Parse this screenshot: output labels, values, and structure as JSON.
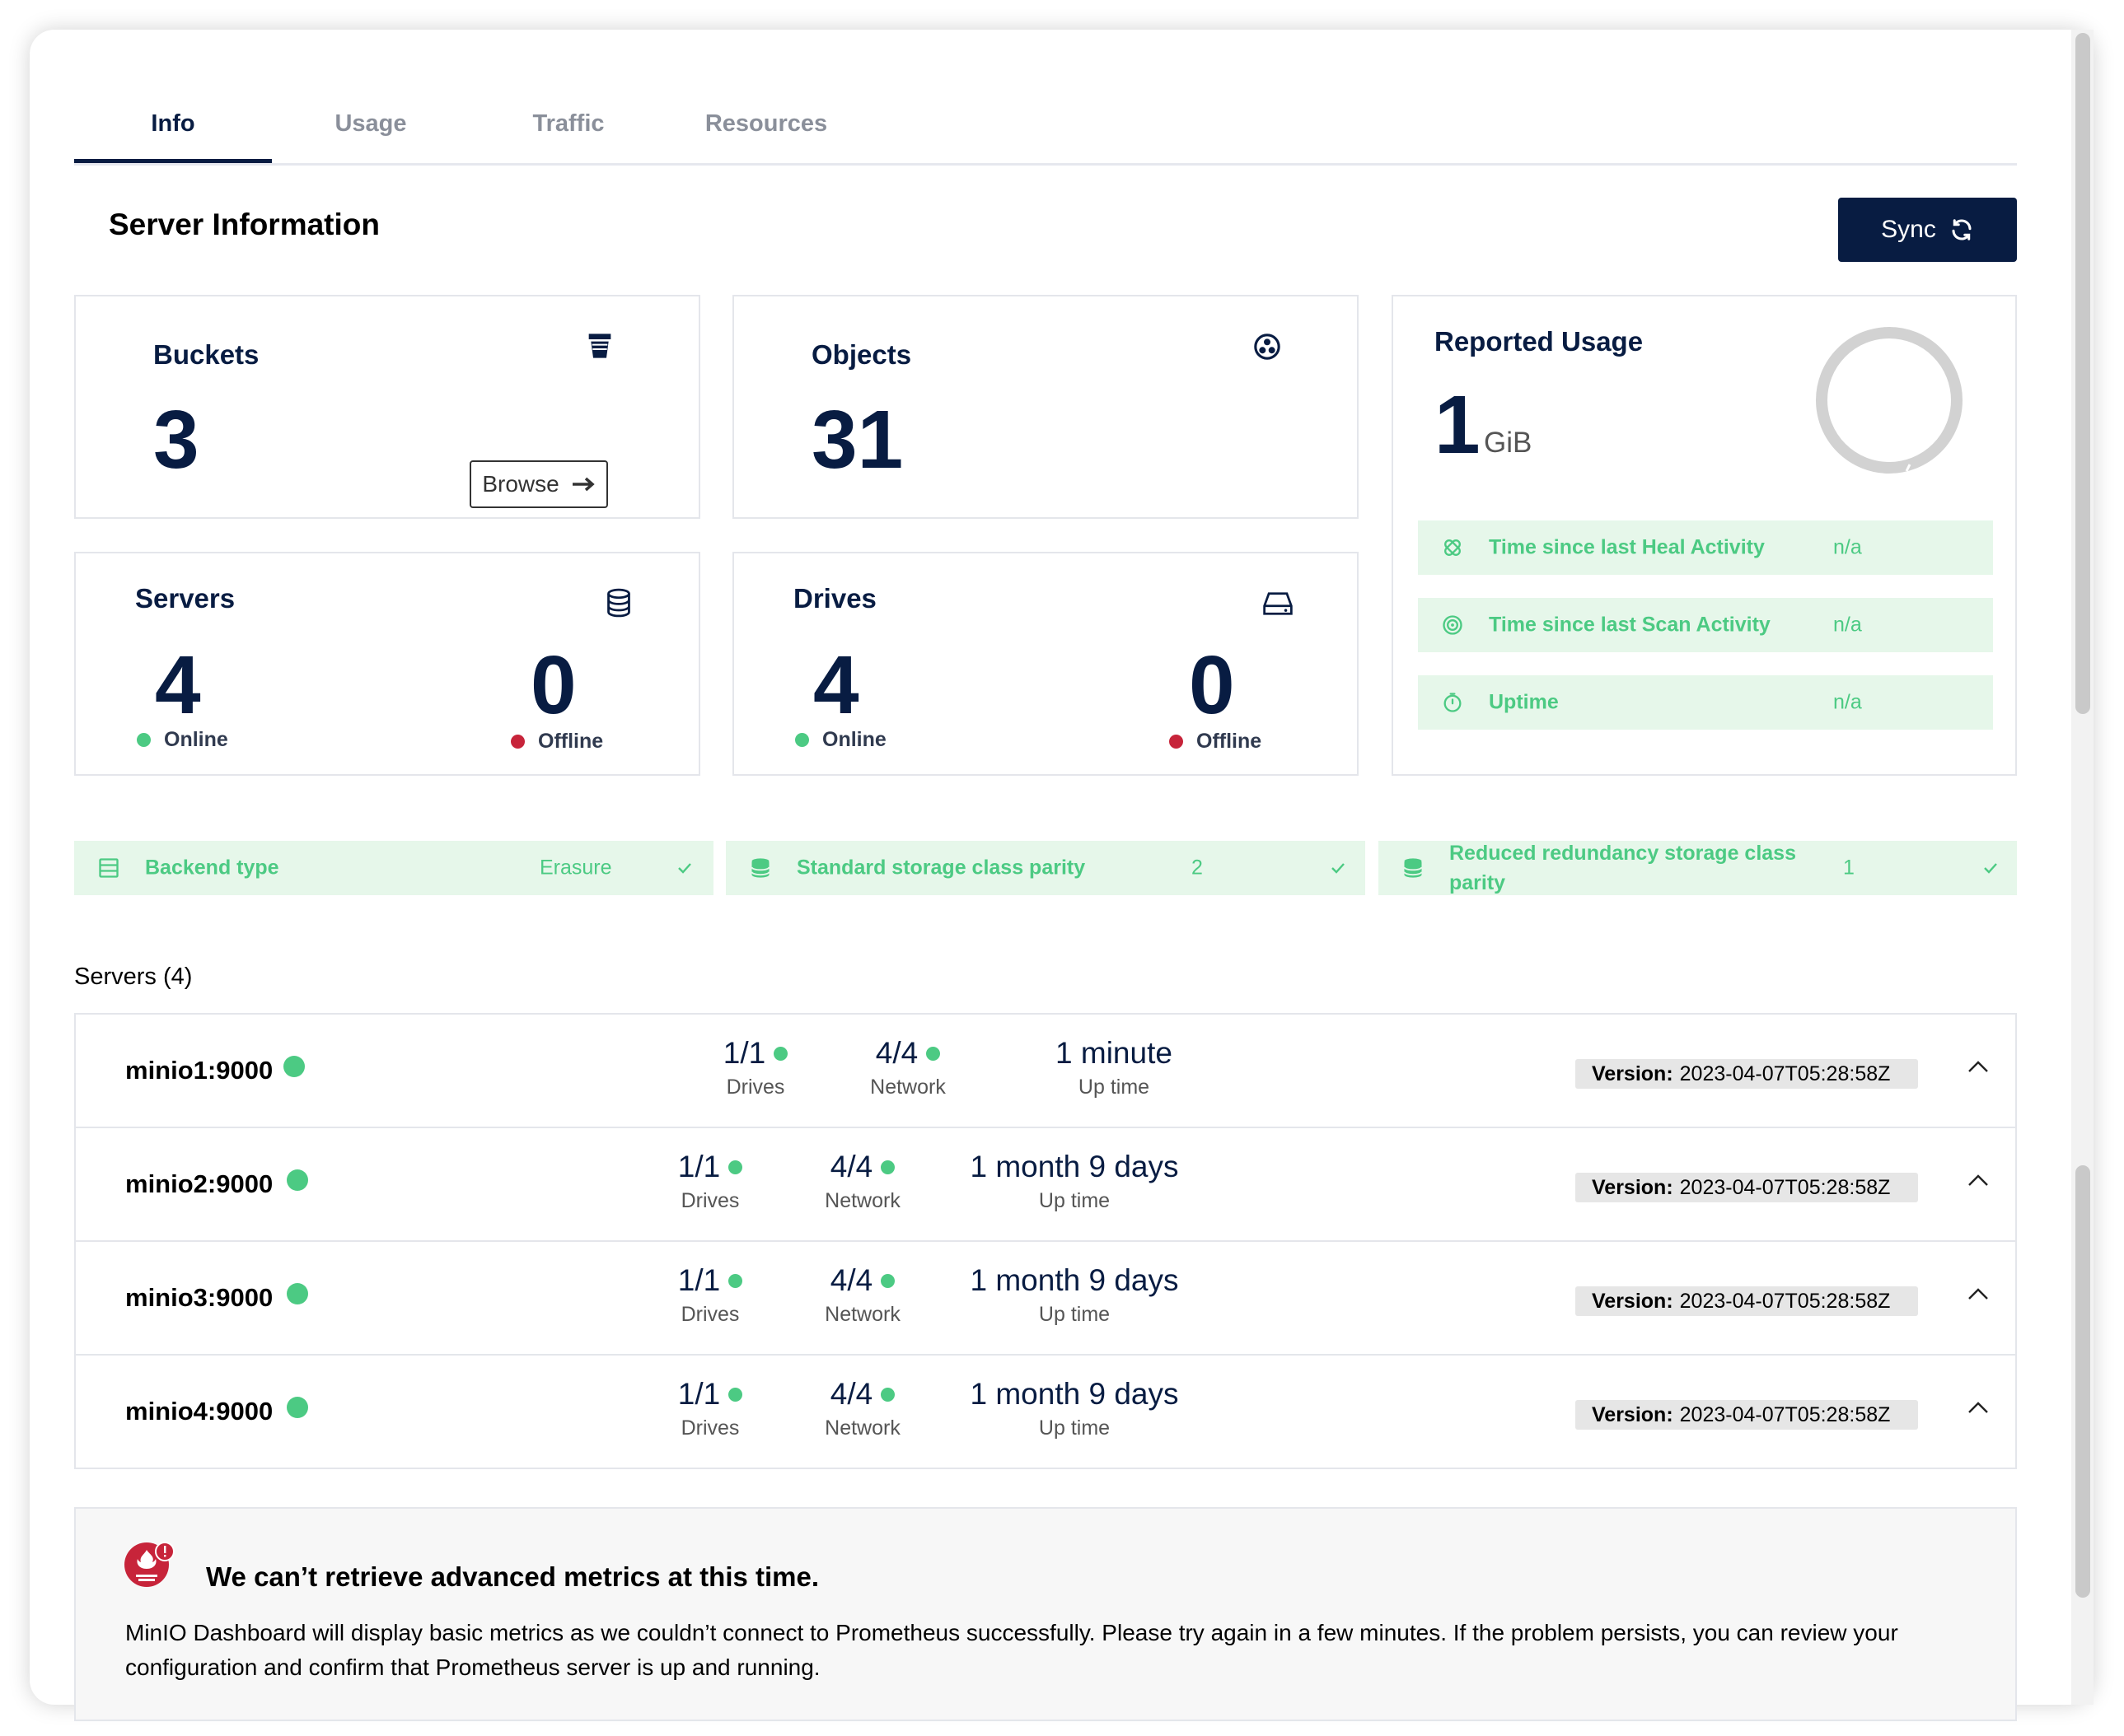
{
  "tabs": [
    {
      "label": "Info",
      "active": true
    },
    {
      "label": "Usage",
      "active": false
    },
    {
      "label": "Traffic",
      "active": false
    },
    {
      "label": "Resources",
      "active": false
    }
  ],
  "page_title": "Server Information",
  "sync_button": {
    "label": "Sync",
    "icon": "refresh-icon"
  },
  "buckets": {
    "title": "Buckets",
    "value": "3",
    "icon": "bucket-icon",
    "browse_label": "Browse"
  },
  "objects": {
    "title": "Objects",
    "value": "31",
    "icon": "objects-icon"
  },
  "servers_card": {
    "title": "Servers",
    "online_value": "4",
    "online_label": "Online",
    "offline_value": "0",
    "offline_label": "Offline",
    "icon": "database-icon"
  },
  "drives_card": {
    "title": "Drives",
    "online_value": "4",
    "online_label": "Online",
    "offline_value": "0",
    "offline_label": "Offline",
    "icon": "drive-icon"
  },
  "reported_usage": {
    "title": "Reported Usage",
    "value": "1",
    "unit": "GiB",
    "rows": [
      {
        "icon": "heal-icon",
        "label": "Time since last Heal Activity",
        "value": "n/a"
      },
      {
        "icon": "scan-icon",
        "label": "Time since last Scan Activity",
        "value": "n/a"
      },
      {
        "icon": "timer-icon",
        "label": "Uptime",
        "value": "n/a"
      }
    ]
  },
  "storage_info": [
    {
      "icon": "backend-icon",
      "label": "Backend type",
      "value": "Erasure"
    },
    {
      "icon": "storage-icon",
      "label": "Standard storage class parity",
      "value": "2"
    },
    {
      "icon": "storage-icon",
      "label": "Reduced redundancy storage class parity",
      "value": "1"
    }
  ],
  "servers_caption": "Servers (4)",
  "servers": [
    {
      "name": "minio1:9000",
      "drives": "1/1",
      "drives_label": "Drives",
      "network": "4/4",
      "network_label": "Network",
      "uptime": "1 minute",
      "uptime_label": "Up time",
      "version_label": "Version:",
      "version": "2023-04-07T05:28:58Z"
    },
    {
      "name": "minio2:9000",
      "drives": "1/1",
      "drives_label": "Drives",
      "network": "4/4",
      "network_label": "Network",
      "uptime": "1 month 9 days",
      "uptime_label": "Up time",
      "version_label": "Version:",
      "version": "2023-04-07T05:28:58Z"
    },
    {
      "name": "minio3:9000",
      "drives": "1/1",
      "drives_label": "Drives",
      "network": "4/4",
      "network_label": "Network",
      "uptime": "1 month 9 days",
      "uptime_label": "Up time",
      "version_label": "Version:",
      "version": "2023-04-07T05:28:58Z"
    },
    {
      "name": "minio4:9000",
      "drives": "1/1",
      "drives_label": "Drives",
      "network": "4/4",
      "network_label": "Network",
      "uptime": "1 month 9 days",
      "uptime_label": "Up time",
      "version_label": "Version:",
      "version": "2023-04-07T05:28:58Z"
    }
  ],
  "alert": {
    "icon": "prometheus-warning-icon",
    "title": "We can’t retrieve advanced metrics at this time.",
    "text": "MinIO Dashboard will display basic metrics as we couldn’t connect to Prometheus successfully. Please try again in a few minutes. If the problem persists, you can review your configuration and confirm that Prometheus server is up and running."
  },
  "colors": {
    "navy": "#081c42",
    "green": "#4cca83",
    "green_bg": "#e6f7ea",
    "red": "#c7243a"
  }
}
